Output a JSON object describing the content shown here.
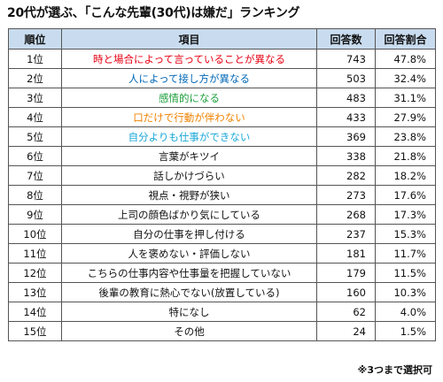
{
  "title": "20代が選ぶ、「こんな先輩(30代)は嫌だ」ランキング",
  "note": "※3つまで選択可",
  "colors": {
    "header_bg": "#c9dcef",
    "rank1": "#e60012",
    "rank2": "#0068b7",
    "rank3": "#1b9e3a",
    "rank4": "#f08200",
    "rank5": "#1aa7d8"
  },
  "chart_data": {
    "type": "table",
    "title": "20代が選ぶ、「こんな先輩(30代)は嫌だ」ランキング",
    "columns": [
      "順位",
      "項目",
      "回答数",
      "回答割合"
    ],
    "rows": [
      {
        "rank": "1位",
        "item": "時と場合によって言っていることが異なる",
        "count": "743",
        "pct": "47.8%",
        "color": "#e60012"
      },
      {
        "rank": "2位",
        "item": "人によって接し方が異なる",
        "count": "503",
        "pct": "32.4%",
        "color": "#0068b7"
      },
      {
        "rank": "3位",
        "item": "感情的になる",
        "count": "483",
        "pct": "31.1%",
        "color": "#1b9e3a"
      },
      {
        "rank": "4位",
        "item": "口だけで行動が伴わない",
        "count": "433",
        "pct": "27.9%",
        "color": "#f08200"
      },
      {
        "rank": "5位",
        "item": "自分よりも仕事ができない",
        "count": "369",
        "pct": "23.8%",
        "color": "#1aa7d8"
      },
      {
        "rank": "6位",
        "item": "言葉がキツイ",
        "count": "338",
        "pct": "21.8%",
        "color": "#111111"
      },
      {
        "rank": "7位",
        "item": "話しかけづらい",
        "count": "282",
        "pct": "18.2%",
        "color": "#111111"
      },
      {
        "rank": "8位",
        "item": "視点・視野が狭い",
        "count": "273",
        "pct": "17.6%",
        "color": "#111111"
      },
      {
        "rank": "9位",
        "item": "上司の顔色ばかり気にしている",
        "count": "268",
        "pct": "17.3%",
        "color": "#111111"
      },
      {
        "rank": "10位",
        "item": "自分の仕事を押し付ける",
        "count": "237",
        "pct": "15.3%",
        "color": "#111111"
      },
      {
        "rank": "11位",
        "item": "人を褒めない・評価しない",
        "count": "181",
        "pct": "11.7%",
        "color": "#111111"
      },
      {
        "rank": "12位",
        "item": "こちらの仕事内容や仕事量を把握していない",
        "count": "179",
        "pct": "11.5%",
        "color": "#111111"
      },
      {
        "rank": "13位",
        "item": "後輩の教育に熱心でない(放置している)",
        "count": "160",
        "pct": "10.3%",
        "color": "#111111"
      },
      {
        "rank": "14位",
        "item": "特になし",
        "count": "62",
        "pct": "4.0%",
        "color": "#111111"
      },
      {
        "rank": "15位",
        "item": "その他",
        "count": "24",
        "pct": "1.5%",
        "color": "#111111"
      }
    ]
  }
}
